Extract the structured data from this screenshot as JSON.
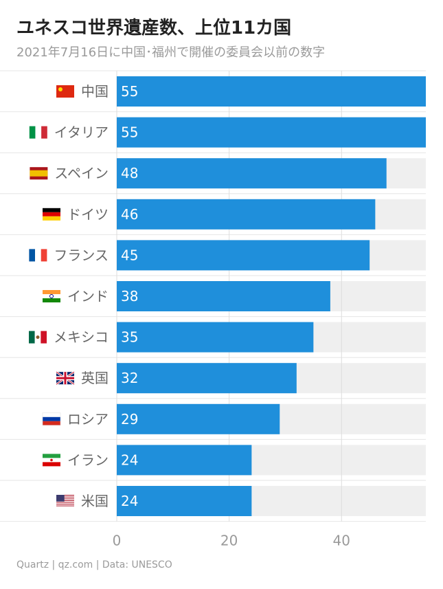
{
  "title": "ユネスコ世界遺産数、上位11カ国",
  "subtitle": "2021年7月16日に中国･福州で開催の委員会以前の数字",
  "source": "Quartz | qz.com | Data: UNESCO",
  "colors": {
    "bar": "#1f8fdb",
    "track": "#efefef",
    "grid": "#dddddd",
    "separator": "#e6e6e6"
  },
  "chart_data": {
    "type": "bar",
    "orientation": "horizontal",
    "categories": [
      "中国",
      "イタリア",
      "スペイン",
      "ドイツ",
      "フランス",
      "インド",
      "メキシコ",
      "英国",
      "ロシア",
      "イラン",
      "米国"
    ],
    "flags": [
      "cn",
      "it",
      "es",
      "de",
      "fr",
      "in",
      "mx",
      "gb",
      "ru",
      "ir",
      "us"
    ],
    "values": [
      55,
      55,
      48,
      46,
      45,
      38,
      35,
      32,
      29,
      24,
      24
    ],
    "xlim": [
      0,
      55
    ],
    "xticks": [
      0,
      20,
      40
    ],
    "grid": true,
    "xlabel": "",
    "ylabel": ""
  }
}
